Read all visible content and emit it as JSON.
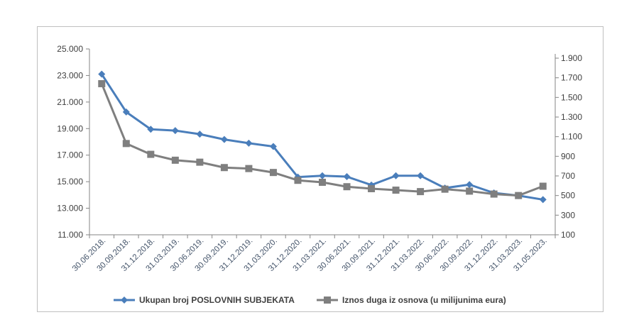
{
  "chart_data": {
    "type": "line",
    "title": "",
    "xlabel": "",
    "ylabel": "",
    "categories": [
      "30.06.2018.",
      "30.09.2018.",
      "31.12.2018.",
      "31.03.2019.",
      "30.06.2019.",
      "30.09.2019.",
      "31.12.2019.",
      "31.03.2020.",
      "31.12.2020.",
      "31.03.2021.",
      "30.06.2021.",
      "30.09.2021.",
      "31.12.2021.",
      "31.03.2022.",
      "30.06.2022.",
      "30.09.2022.",
      "31.12.2022.",
      "31.03.2023.",
      "31.05.2023."
    ],
    "y_left": {
      "ylim": [
        11000,
        25000
      ],
      "ticks": [
        11000,
        13000,
        15000,
        17000,
        19000,
        21000,
        23000,
        25000
      ],
      "tick_labels": [
        "11.000",
        "13.000",
        "15.000",
        "17.000",
        "19.000",
        "21.000",
        "23.000",
        "25.000"
      ]
    },
    "y_right": {
      "ylim": [
        100,
        1900
      ],
      "ticks": [
        100,
        300,
        500,
        700,
        900,
        1100,
        1300,
        1500,
        1700,
        1900
      ],
      "tick_labels": [
        "100",
        "300",
        "500",
        "700",
        "900",
        "1.100",
        "1.300",
        "1.500",
        "1.700",
        "1.900"
      ]
    },
    "series": [
      {
        "name": "Ukupan broj  POSLOVNIH SUBJEKATA",
        "axis": "left",
        "color": "#4a7ebb",
        "marker": "diamond",
        "values": [
          23100,
          20250,
          18950,
          18850,
          18580,
          18180,
          17900,
          17650,
          15350,
          15450,
          15380,
          14750,
          15450,
          15450,
          14520,
          14780,
          14150,
          13950,
          13650
        ]
      },
      {
        "name": "Iznos duga iz osnova (u milijunima eura)",
        "axis": "right",
        "color": "#7f7f7f",
        "marker": "square",
        "values": [
          1640,
          1030,
          920,
          860,
          840,
          785,
          775,
          735,
          655,
          635,
          590,
          570,
          555,
          540,
          565,
          545,
          515,
          500,
          595
        ]
      }
    ],
    "legend": "bottom",
    "grid": false
  }
}
